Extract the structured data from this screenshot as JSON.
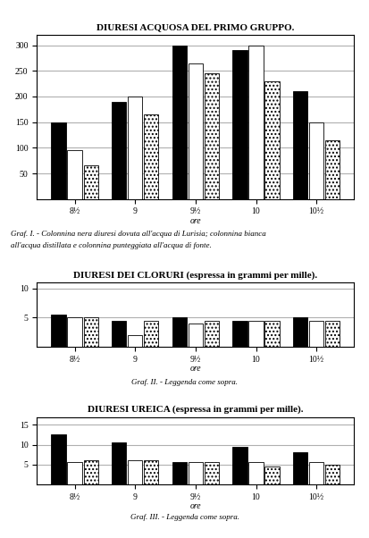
{
  "chart_data": [
    {
      "type": "bar",
      "title": "DIURESI ACQUOSA DEL PRIMO GRUPPO.",
      "x_label": "ore",
      "annotations": [
        "Graf. I. - Colonnina nera diuresi dovuta all'acqua di Lurisia; colonnina bianca",
        "all'acqua distillata e colonnina punteggiata all'acqua di fonte."
      ],
      "categories": [
        "8½",
        "9",
        "9½",
        "10",
        "10½"
      ],
      "series": [
        {
          "color": "black",
          "values": [
            150,
            190,
            300,
            290,
            210
          ]
        },
        {
          "color": "white",
          "values": [
            95,
            200,
            265,
            300,
            150
          ]
        },
        {
          "color": "white",
          "values": [
            65,
            165,
            245,
            230,
            115
          ]
        }
      ],
      "ylim": [
        0,
        320
      ],
      "yticks": [
        50,
        100,
        150,
        200,
        250,
        300
      ],
      "grid": true
    },
    {
      "type": "bar",
      "title": "DIURESI DEI CLORURI (espressa in grammi per mille).",
      "x_label": "ore",
      "annotations": [
        "Graf. II. - Leggenda come sopra."
      ],
      "categories": [
        "8½",
        "9",
        "9½",
        "10",
        "10½"
      ],
      "series": [
        {
          "color": "black",
          "values": [
            5.5,
            4.5,
            5.0,
            4.5,
            5.0
          ]
        },
        {
          "color": "white",
          "values": [
            5.0,
            2.0,
            4.0,
            4.5,
            4.5
          ]
        },
        {
          "color": "white",
          "values": [
            5.0,
            4.5,
            4.5,
            4.5,
            4.5
          ]
        }
      ],
      "ylim": [
        0,
        11
      ],
      "yticks": [
        5,
        10
      ],
      "grid": true
    },
    {
      "type": "bar",
      "title": "DIURESI UREICA (espressa in grammi per mille).",
      "x_label": "ore",
      "annotations": [
        "Graf. III. - Leggenda come sopra."
      ],
      "categories": [
        "8½",
        "9",
        "9½",
        "10",
        "10½"
      ],
      "series": [
        {
          "color": "black",
          "values": [
            12.5,
            10.5,
            5.5,
            9.5,
            8.0
          ]
        },
        {
          "color": "white",
          "values": [
            5.5,
            6.0,
            5.5,
            5.5,
            5.5
          ]
        },
        {
          "color": "white",
          "values": [
            6.0,
            6.0,
            5.5,
            4.5,
            5.0
          ]
        }
      ],
      "ylim": [
        0,
        17
      ],
      "yticks": [
        5,
        10,
        15
      ],
      "grid": true
    }
  ]
}
